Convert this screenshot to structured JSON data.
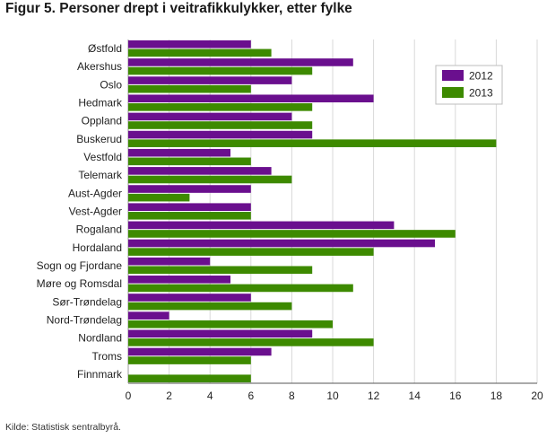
{
  "chart_data": {
    "type": "bar",
    "orientation": "horizontal",
    "title": "Figur 5. Personer drept i veitrafikkulykker, etter fylke",
    "source": "Kilde: Statistisk sentralbyrå.",
    "categories": [
      "Østfold",
      "Akershus",
      "Oslo",
      "Hedmark",
      "Oppland",
      "Buskerud",
      "Vestfold",
      "Telemark",
      "Aust-Agder",
      "Vest-Agder",
      "Rogaland",
      "Hordaland",
      "Sogn og Fjordane",
      "Møre og Romsdal",
      "Sør-Trøndelag",
      "Nord-Trøndelag",
      "Nordland",
      "Troms",
      "Finnmark"
    ],
    "series": [
      {
        "name": "2012",
        "color": "#6a0f8e",
        "values": [
          6,
          11,
          8,
          12,
          8,
          9,
          5,
          7,
          6,
          6,
          13,
          15,
          4,
          5,
          6,
          2,
          9,
          7,
          0
        ]
      },
      {
        "name": "2013",
        "color": "#3d8a00",
        "values": [
          7,
          9,
          6,
          9,
          9,
          18,
          6,
          8,
          3,
          6,
          16,
          12,
          9,
          11,
          8,
          10,
          12,
          6,
          6
        ]
      }
    ],
    "xlim": [
      0,
      20
    ],
    "xticks": [
      0,
      2,
      4,
      6,
      8,
      10,
      12,
      14,
      16,
      18,
      20
    ],
    "grid": true,
    "legend": "top-right"
  }
}
